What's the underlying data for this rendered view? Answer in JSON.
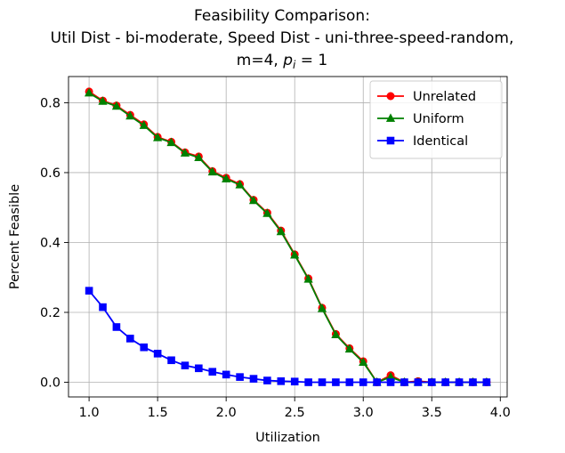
{
  "chart_data": {
    "type": "line",
    "title_lines": [
      "Feasibility Comparison:",
      "Util Dist - bi-moderate, Speed Dist - uni-three-speed-random,",
      "m=4, $p_i$ = 1"
    ],
    "title_last_line_parts": {
      "prefix": "m=4, ",
      "var": "p",
      "sub": "i",
      "suffix": " = 1"
    },
    "xlabel": "Utilization",
    "ylabel": "Percent Feasible",
    "xlim": [
      0.85,
      4.05
    ],
    "ylim": [
      -0.042,
      0.875
    ],
    "xticks": [
      1.0,
      1.5,
      2.0,
      2.5,
      3.0,
      3.5,
      4.0
    ],
    "xtick_labels": [
      "1.0",
      "1.5",
      "2.0",
      "2.5",
      "3.0",
      "3.5",
      "4.0"
    ],
    "yticks": [
      0.0,
      0.2,
      0.4,
      0.6,
      0.8
    ],
    "ytick_labels": [
      "0.0",
      "0.2",
      "0.4",
      "0.6",
      "0.8"
    ],
    "grid": true,
    "legend_position": "top-right",
    "x": [
      1.0,
      1.1,
      1.2,
      1.3,
      1.4,
      1.5,
      1.6,
      1.7,
      1.8,
      1.9,
      2.0,
      2.1,
      2.2,
      2.3,
      2.4,
      2.5,
      2.6,
      2.7,
      2.8,
      2.9,
      3.0,
      3.1,
      3.2,
      3.3,
      3.4,
      3.5,
      3.6,
      3.7,
      3.8,
      3.9
    ],
    "series": [
      {
        "name": "Unrelated",
        "color": "#ff0000",
        "marker": "circle",
        "values": [
          0.832,
          0.806,
          0.792,
          0.765,
          0.738,
          0.702,
          0.688,
          0.658,
          0.646,
          0.604,
          0.585,
          0.567,
          0.522,
          0.485,
          0.434,
          0.366,
          0.297,
          0.213,
          0.138,
          0.097,
          0.06,
          0.0,
          0.02,
          0.0,
          0.003,
          0.0,
          0.0,
          0.0,
          0.0,
          0.0
        ]
      },
      {
        "name": "Uniform",
        "color": "#008000",
        "marker": "triangle",
        "values": [
          0.828,
          0.804,
          0.79,
          0.762,
          0.735,
          0.7,
          0.686,
          0.656,
          0.643,
          0.602,
          0.582,
          0.565,
          0.52,
          0.483,
          0.431,
          0.364,
          0.295,
          0.211,
          0.136,
          0.095,
          0.057,
          0.0,
          0.015,
          0.0,
          0.0,
          0.0,
          0.0,
          0.0,
          0.0,
          0.0
        ]
      },
      {
        "name": "Identical",
        "color": "#0000ff",
        "marker": "square",
        "values": [
          0.262,
          0.215,
          0.158,
          0.125,
          0.1,
          0.082,
          0.063,
          0.048,
          0.04,
          0.03,
          0.022,
          0.015,
          0.01,
          0.005,
          0.003,
          0.002,
          0.0,
          0.0,
          0.0,
          0.0,
          0.0,
          0.0,
          0.0,
          0.0,
          0.0,
          0.0,
          0.0,
          0.0,
          0.0,
          0.0
        ]
      }
    ]
  }
}
